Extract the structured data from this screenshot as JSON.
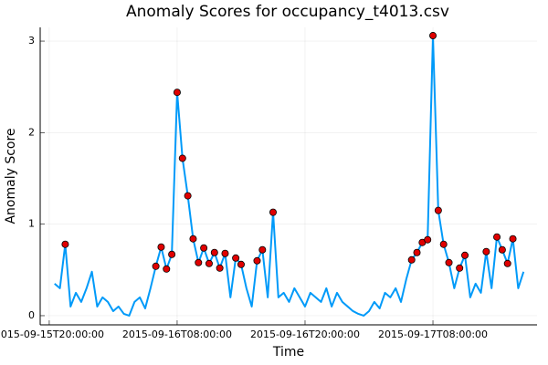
{
  "chart_data": {
    "type": "line",
    "title": "Anomaly Scores for occupancy_t4013.csv",
    "xlabel": "Time",
    "ylabel": "Anomaly Score",
    "x": [
      "2015-09-15T20:30:00",
      "2015-09-15T21:00:00",
      "2015-09-15T21:30:00",
      "2015-09-15T22:00:00",
      "2015-09-15T22:30:00",
      "2015-09-15T23:00:00",
      "2015-09-15T23:30:00",
      "2015-09-16T00:00:00",
      "2015-09-16T00:30:00",
      "2015-09-16T01:00:00",
      "2015-09-16T01:30:00",
      "2015-09-16T02:00:00",
      "2015-09-16T02:30:00",
      "2015-09-16T03:00:00",
      "2015-09-16T03:30:00",
      "2015-09-16T04:00:00",
      "2015-09-16T04:30:00",
      "2015-09-16T05:00:00",
      "2015-09-16T05:30:00",
      "2015-09-16T06:00:00",
      "2015-09-16T06:30:00",
      "2015-09-16T07:00:00",
      "2015-09-16T07:30:00",
      "2015-09-16T08:00:00",
      "2015-09-16T08:30:00",
      "2015-09-16T09:00:00",
      "2015-09-16T09:30:00",
      "2015-09-16T10:00:00",
      "2015-09-16T10:30:00",
      "2015-09-16T11:00:00",
      "2015-09-16T11:30:00",
      "2015-09-16T12:00:00",
      "2015-09-16T12:30:00",
      "2015-09-16T13:00:00",
      "2015-09-16T13:30:00",
      "2015-09-16T14:00:00",
      "2015-09-16T14:30:00",
      "2015-09-16T15:00:00",
      "2015-09-16T15:30:00",
      "2015-09-16T16:00:00",
      "2015-09-16T16:30:00",
      "2015-09-16T17:00:00",
      "2015-09-16T17:30:00",
      "2015-09-16T18:00:00",
      "2015-09-16T18:30:00",
      "2015-09-16T19:00:00",
      "2015-09-16T19:30:00",
      "2015-09-16T20:00:00",
      "2015-09-16T20:30:00",
      "2015-09-16T21:00:00",
      "2015-09-16T21:30:00",
      "2015-09-16T22:00:00",
      "2015-09-16T22:30:00",
      "2015-09-16T23:00:00",
      "2015-09-16T23:30:00",
      "2015-09-17T00:00:00",
      "2015-09-17T00:30:00",
      "2015-09-17T01:00:00",
      "2015-09-17T01:30:00",
      "2015-09-17T02:00:00",
      "2015-09-17T02:30:00",
      "2015-09-17T03:00:00",
      "2015-09-17T03:30:00",
      "2015-09-17T04:00:00",
      "2015-09-17T04:30:00",
      "2015-09-17T05:00:00",
      "2015-09-17T05:30:00",
      "2015-09-17T06:00:00",
      "2015-09-17T06:30:00",
      "2015-09-17T07:00:00",
      "2015-09-17T07:30:00",
      "2015-09-17T08:00:00",
      "2015-09-17T08:30:00",
      "2015-09-17T09:00:00",
      "2015-09-17T09:30:00",
      "2015-09-17T10:00:00",
      "2015-09-17T10:30:00",
      "2015-09-17T11:00:00",
      "2015-09-17T11:30:00",
      "2015-09-17T12:00:00",
      "2015-09-17T12:30:00",
      "2015-09-17T13:00:00",
      "2015-09-17T13:30:00",
      "2015-09-17T14:00:00",
      "2015-09-17T14:30:00",
      "2015-09-17T15:00:00",
      "2015-09-17T15:30:00",
      "2015-09-17T16:00:00",
      "2015-09-17T16:30:00"
    ],
    "series": [
      {
        "color": "#009af9",
        "values": [
          0.35,
          0.3,
          0.78,
          0.1,
          0.25,
          0.15,
          0.3,
          0.48,
          0.1,
          0.2,
          0.15,
          0.05,
          0.1,
          0.02,
          0.0,
          0.15,
          0.2,
          0.08,
          0.3,
          0.54,
          0.75,
          0.51,
          0.67,
          2.44,
          1.72,
          1.31,
          0.84,
          0.58,
          0.74,
          0.57,
          0.69,
          0.52,
          0.68,
          0.2,
          0.63,
          0.56,
          0.3,
          0.1,
          0.6,
          0.72,
          0.2,
          1.13,
          0.2,
          0.25,
          0.15,
          0.3,
          0.2,
          0.1,
          0.25,
          0.2,
          0.15,
          0.3,
          0.1,
          0.25,
          0.15,
          0.1,
          0.05,
          0.02,
          0.0,
          0.05,
          0.15,
          0.08,
          0.25,
          0.2,
          0.3,
          0.15,
          0.4,
          0.61,
          0.69,
          0.8,
          0.83,
          3.06,
          1.15,
          0.78,
          0.58,
          0.3,
          0.52,
          0.66,
          0.2,
          0.35,
          0.25,
          0.7,
          0.3,
          0.86,
          0.72,
          0.57,
          0.84,
          0.3,
          0.48
        ]
      }
    ],
    "anomalies": {
      "color": "#e00000",
      "x": [
        "2015-09-15T21:30:00",
        "2015-09-16T06:00:00",
        "2015-09-16T06:30:00",
        "2015-09-16T07:00:00",
        "2015-09-16T07:30:00",
        "2015-09-16T08:00:00",
        "2015-09-16T08:30:00",
        "2015-09-16T09:00:00",
        "2015-09-16T09:30:00",
        "2015-09-16T10:00:00",
        "2015-09-16T10:30:00",
        "2015-09-16T11:00:00",
        "2015-09-16T11:30:00",
        "2015-09-16T12:00:00",
        "2015-09-16T12:30:00",
        "2015-09-16T13:30:00",
        "2015-09-16T14:00:00",
        "2015-09-16T15:30:00",
        "2015-09-16T16:00:00",
        "2015-09-16T17:00:00",
        "2015-09-17T06:00:00",
        "2015-09-17T06:30:00",
        "2015-09-17T07:00:00",
        "2015-09-17T07:30:00",
        "2015-09-17T08:00:00",
        "2015-09-17T08:30:00",
        "2015-09-17T09:00:00",
        "2015-09-17T09:30:00",
        "2015-09-17T10:30:00",
        "2015-09-17T11:00:00",
        "2015-09-17T13:00:00",
        "2015-09-17T14:00:00",
        "2015-09-17T14:30:00",
        "2015-09-17T15:00:00",
        "2015-09-17T15:30:00"
      ],
      "values": [
        0.78,
        0.54,
        0.75,
        0.51,
        0.67,
        2.44,
        1.72,
        1.31,
        0.84,
        0.58,
        0.74,
        0.57,
        0.69,
        0.52,
        0.68,
        0.63,
        0.56,
        0.6,
        0.72,
        1.13,
        0.61,
        0.69,
        0.8,
        0.83,
        3.06,
        1.15,
        0.78,
        0.58,
        0.52,
        0.66,
        0.7,
        0.86,
        0.72,
        0.57,
        0.84
      ]
    },
    "xlim": [
      "2015-09-15T19:09:00",
      "2015-09-17T17:46:00"
    ],
    "xticks": [
      "2015-09-15T20:00:00",
      "2015-09-16T08:00:00",
      "2015-09-16T20:00:00",
      "2015-09-17T08:00:00"
    ],
    "ylim": [
      -0.1,
      3.15
    ],
    "yticks": [
      0,
      1,
      2,
      3
    ],
    "grid": true
  }
}
